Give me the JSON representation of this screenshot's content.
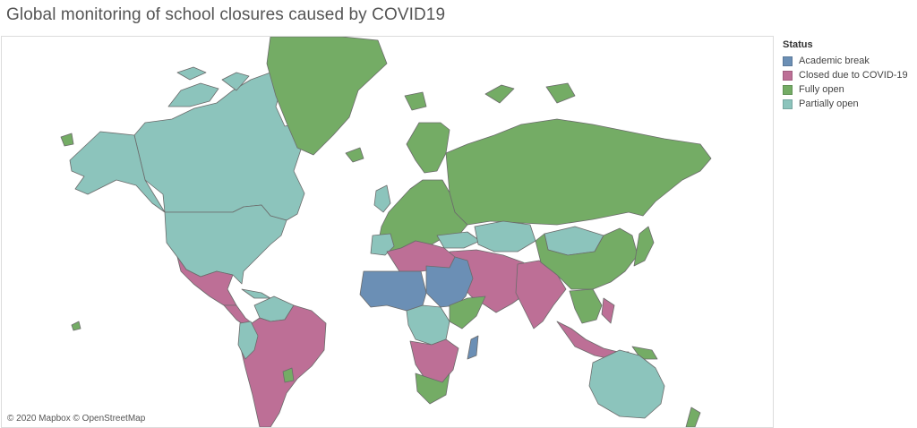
{
  "title": "Global monitoring of school closures caused by COVID19",
  "attribution": "© 2020 Mapbox © OpenStreetMap",
  "legend": {
    "title": "Status",
    "items": [
      {
        "label": "Academic break",
        "color": "#6b8fb5"
      },
      {
        "label": "Closed due to COVID-19",
        "color": "#bd6f96"
      },
      {
        "label": "Fully open",
        "color": "#74ac65"
      },
      {
        "label": "Partially open",
        "color": "#8cc4bc"
      }
    ]
  },
  "colors": {
    "academic_break": "#6b8fb5",
    "closed": "#bd6f96",
    "fully_open": "#74ac65",
    "partially_open": "#8cc4bc"
  }
}
